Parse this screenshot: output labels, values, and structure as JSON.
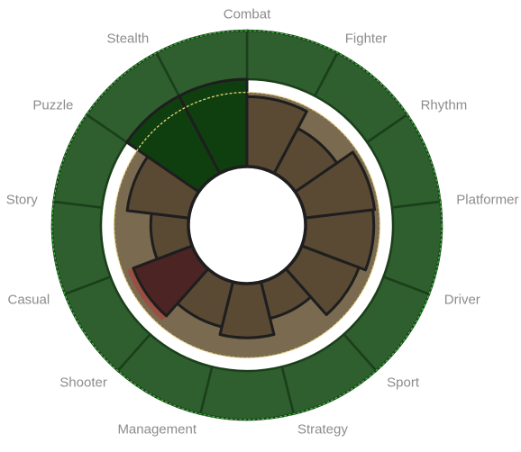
{
  "chart_data": {
    "type": "radial-bar",
    "categories": [
      "Combat",
      "Fighter",
      "Rhythm",
      "Platformer",
      "Driver",
      "Sport",
      "Strategy",
      "Management",
      "Shooter",
      "Casual",
      "Story",
      "Puzzle",
      "Stealth"
    ],
    "outer_value": 1.0,
    "reference_value": 0.85,
    "series": [
      {
        "values": [
          0.8,
          0.58,
          0.8,
          0.78,
          0.7,
          0.43,
          0.62,
          0.53,
          0.72,
          0.43,
          0.71,
          1.0,
          1.0
        ]
      }
    ],
    "highlight": {
      "Stealth": "strong",
      "Puzzle": "strong",
      "Shooter": "weak"
    },
    "colors": {
      "ring": "#2f5e2f",
      "ring_border": "#1a3f1a",
      "band": "#7a6a4f",
      "bar": "#5a4a34",
      "bar_strong": "#0f3f0f",
      "bar_weak": "#4d2424",
      "bar_weak_edge": "#b23a3a",
      "bar_outline": "#1e1e1e",
      "reference_line": "#e6d27a",
      "ring_dash": "#3fbf3f"
    }
  }
}
